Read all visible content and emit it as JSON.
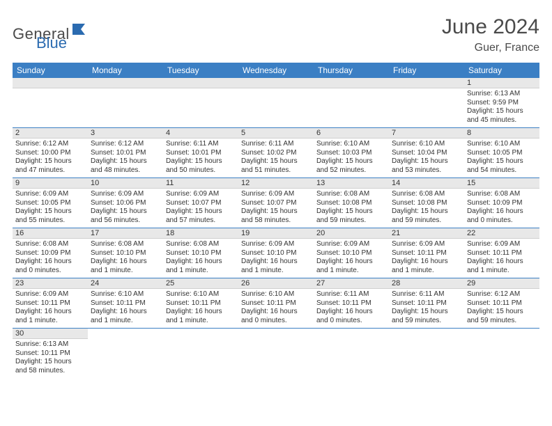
{
  "brand": {
    "general": "General",
    "blue": "Blue"
  },
  "title": "June 2024",
  "location": "Guer, France",
  "colors": {
    "header_bg": "#3b7fc4",
    "header_text": "#ffffff",
    "daynum_bg": "#e8e8e8",
    "cell_border": "#3b7fc4",
    "body_text": "#333333"
  },
  "day_headers": [
    "Sunday",
    "Monday",
    "Tuesday",
    "Wednesday",
    "Thursday",
    "Friday",
    "Saturday"
  ],
  "weeks": [
    [
      null,
      null,
      null,
      null,
      null,
      null,
      {
        "n": "1",
        "sunrise": "Sunrise: 6:13 AM",
        "sunset": "Sunset: 9:59 PM",
        "daylight": "Daylight: 15 hours and 45 minutes."
      }
    ],
    [
      {
        "n": "2",
        "sunrise": "Sunrise: 6:12 AM",
        "sunset": "Sunset: 10:00 PM",
        "daylight": "Daylight: 15 hours and 47 minutes."
      },
      {
        "n": "3",
        "sunrise": "Sunrise: 6:12 AM",
        "sunset": "Sunset: 10:01 PM",
        "daylight": "Daylight: 15 hours and 48 minutes."
      },
      {
        "n": "4",
        "sunrise": "Sunrise: 6:11 AM",
        "sunset": "Sunset: 10:01 PM",
        "daylight": "Daylight: 15 hours and 50 minutes."
      },
      {
        "n": "5",
        "sunrise": "Sunrise: 6:11 AM",
        "sunset": "Sunset: 10:02 PM",
        "daylight": "Daylight: 15 hours and 51 minutes."
      },
      {
        "n": "6",
        "sunrise": "Sunrise: 6:10 AM",
        "sunset": "Sunset: 10:03 PM",
        "daylight": "Daylight: 15 hours and 52 minutes."
      },
      {
        "n": "7",
        "sunrise": "Sunrise: 6:10 AM",
        "sunset": "Sunset: 10:04 PM",
        "daylight": "Daylight: 15 hours and 53 minutes."
      },
      {
        "n": "8",
        "sunrise": "Sunrise: 6:10 AM",
        "sunset": "Sunset: 10:05 PM",
        "daylight": "Daylight: 15 hours and 54 minutes."
      }
    ],
    [
      {
        "n": "9",
        "sunrise": "Sunrise: 6:09 AM",
        "sunset": "Sunset: 10:05 PM",
        "daylight": "Daylight: 15 hours and 55 minutes."
      },
      {
        "n": "10",
        "sunrise": "Sunrise: 6:09 AM",
        "sunset": "Sunset: 10:06 PM",
        "daylight": "Daylight: 15 hours and 56 minutes."
      },
      {
        "n": "11",
        "sunrise": "Sunrise: 6:09 AM",
        "sunset": "Sunset: 10:07 PM",
        "daylight": "Daylight: 15 hours and 57 minutes."
      },
      {
        "n": "12",
        "sunrise": "Sunrise: 6:09 AM",
        "sunset": "Sunset: 10:07 PM",
        "daylight": "Daylight: 15 hours and 58 minutes."
      },
      {
        "n": "13",
        "sunrise": "Sunrise: 6:08 AM",
        "sunset": "Sunset: 10:08 PM",
        "daylight": "Daylight: 15 hours and 59 minutes."
      },
      {
        "n": "14",
        "sunrise": "Sunrise: 6:08 AM",
        "sunset": "Sunset: 10:08 PM",
        "daylight": "Daylight: 15 hours and 59 minutes."
      },
      {
        "n": "15",
        "sunrise": "Sunrise: 6:08 AM",
        "sunset": "Sunset: 10:09 PM",
        "daylight": "Daylight: 16 hours and 0 minutes."
      }
    ],
    [
      {
        "n": "16",
        "sunrise": "Sunrise: 6:08 AM",
        "sunset": "Sunset: 10:09 PM",
        "daylight": "Daylight: 16 hours and 0 minutes."
      },
      {
        "n": "17",
        "sunrise": "Sunrise: 6:08 AM",
        "sunset": "Sunset: 10:10 PM",
        "daylight": "Daylight: 16 hours and 1 minute."
      },
      {
        "n": "18",
        "sunrise": "Sunrise: 6:08 AM",
        "sunset": "Sunset: 10:10 PM",
        "daylight": "Daylight: 16 hours and 1 minute."
      },
      {
        "n": "19",
        "sunrise": "Sunrise: 6:09 AM",
        "sunset": "Sunset: 10:10 PM",
        "daylight": "Daylight: 16 hours and 1 minute."
      },
      {
        "n": "20",
        "sunrise": "Sunrise: 6:09 AM",
        "sunset": "Sunset: 10:10 PM",
        "daylight": "Daylight: 16 hours and 1 minute."
      },
      {
        "n": "21",
        "sunrise": "Sunrise: 6:09 AM",
        "sunset": "Sunset: 10:11 PM",
        "daylight": "Daylight: 16 hours and 1 minute."
      },
      {
        "n": "22",
        "sunrise": "Sunrise: 6:09 AM",
        "sunset": "Sunset: 10:11 PM",
        "daylight": "Daylight: 16 hours and 1 minute."
      }
    ],
    [
      {
        "n": "23",
        "sunrise": "Sunrise: 6:09 AM",
        "sunset": "Sunset: 10:11 PM",
        "daylight": "Daylight: 16 hours and 1 minute."
      },
      {
        "n": "24",
        "sunrise": "Sunrise: 6:10 AM",
        "sunset": "Sunset: 10:11 PM",
        "daylight": "Daylight: 16 hours and 1 minute."
      },
      {
        "n": "25",
        "sunrise": "Sunrise: 6:10 AM",
        "sunset": "Sunset: 10:11 PM",
        "daylight": "Daylight: 16 hours and 1 minute."
      },
      {
        "n": "26",
        "sunrise": "Sunrise: 6:10 AM",
        "sunset": "Sunset: 10:11 PM",
        "daylight": "Daylight: 16 hours and 0 minutes."
      },
      {
        "n": "27",
        "sunrise": "Sunrise: 6:11 AM",
        "sunset": "Sunset: 10:11 PM",
        "daylight": "Daylight: 16 hours and 0 minutes."
      },
      {
        "n": "28",
        "sunrise": "Sunrise: 6:11 AM",
        "sunset": "Sunset: 10:11 PM",
        "daylight": "Daylight: 15 hours and 59 minutes."
      },
      {
        "n": "29",
        "sunrise": "Sunrise: 6:12 AM",
        "sunset": "Sunset: 10:11 PM",
        "daylight": "Daylight: 15 hours and 59 minutes."
      }
    ],
    [
      {
        "n": "30",
        "sunrise": "Sunrise: 6:13 AM",
        "sunset": "Sunset: 10:11 PM",
        "daylight": "Daylight: 15 hours and 58 minutes."
      },
      null,
      null,
      null,
      null,
      null,
      null
    ]
  ]
}
